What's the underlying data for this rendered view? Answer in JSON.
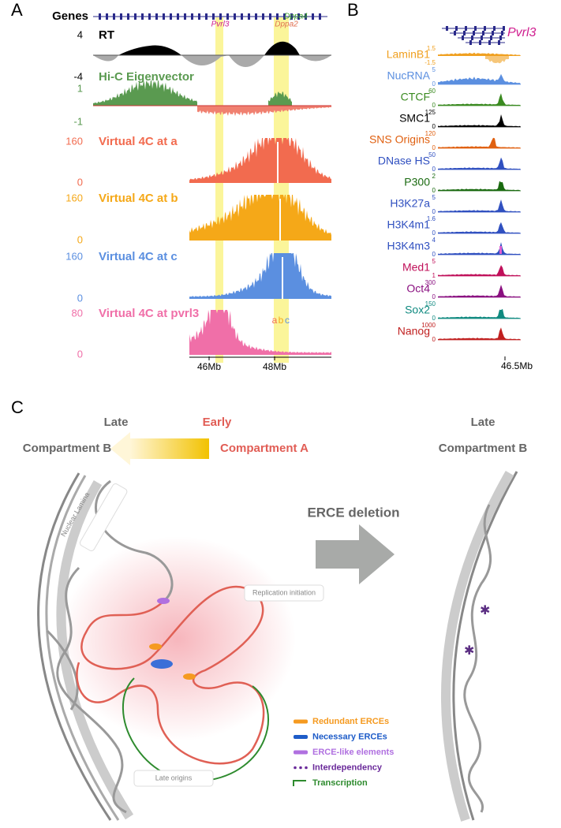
{
  "panel_a": {
    "label": "A",
    "genes_label": "Genes",
    "gene_names": [
      "Pvrl3",
      "Dppa4",
      "Dppa2"
    ],
    "tracks": [
      {
        "name": "RT",
        "max": "4",
        "min": "-4"
      },
      {
        "name": "Hi-C Eigenvector",
        "max": "1",
        "min": "-1"
      },
      {
        "name": "Virtual 4C at a",
        "max": "160",
        "min": "0"
      },
      {
        "name": "Virtual 4C at b",
        "max": "160",
        "min": "0"
      },
      {
        "name": "Virtual 4C at c",
        "max": "160",
        "min": "0"
      },
      {
        "name": "Virtual 4C at pvrl3",
        "max": "80",
        "min": "0"
      }
    ],
    "viewpoints": [
      "a",
      "b",
      "c"
    ],
    "x_ticks": [
      "46Mb",
      "48Mb"
    ]
  },
  "panel_b": {
    "label": "B",
    "gene": "Pvrl3",
    "tracks": [
      {
        "name": "LaminB1",
        "max": "1.5",
        "min": "-1.5"
      },
      {
        "name": "NucRNA",
        "max": "5",
        "min": "0"
      },
      {
        "name": "CTCF",
        "max": "60",
        "min": "0"
      },
      {
        "name": "SMC1",
        "max": "125",
        "min": "0"
      },
      {
        "name": "SNS Origins",
        "max": "120",
        "min": "0"
      },
      {
        "name": "DNase HS",
        "max": "50",
        "min": "0"
      },
      {
        "name": "P300",
        "max": "2",
        "min": "0"
      },
      {
        "name": "H3K27a",
        "max": "5",
        "min": "0"
      },
      {
        "name": "H3K4m1",
        "max": "1.6",
        "min": "0"
      },
      {
        "name": "H3K4m3",
        "max": "4",
        "min": "0"
      },
      {
        "name": "Med1",
        "max": "5",
        "min": "1"
      },
      {
        "name": "Oct4",
        "max": "300",
        "min": "0"
      },
      {
        "name": "Sox2",
        "max": "150",
        "min": "0"
      },
      {
        "name": "Nanog",
        "max": "1000",
        "min": "0"
      }
    ],
    "x_tick": "46.5Mb"
  },
  "panel_c": {
    "label": "C",
    "left_top": "Late",
    "left_bottom": "Compartment B",
    "mid_top": "Early",
    "mid_bottom": "Compartment A",
    "arrow_label": "ERCE deletion",
    "right_top": "Late",
    "right_bottom": "Compartment B",
    "callouts": [
      "Nuclear Lamina",
      "Replication initiation",
      "Late origins"
    ],
    "legend": [
      "Redundant ERCEs",
      "Necessary ERCEs",
      "ERCE-like elements",
      "Interdependency",
      "Transcription"
    ]
  }
}
